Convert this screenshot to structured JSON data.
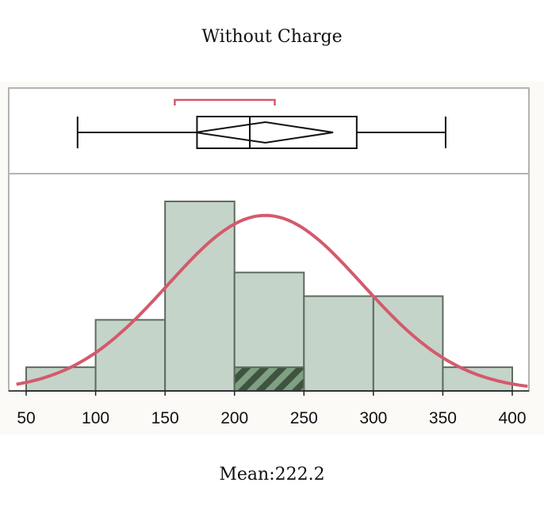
{
  "title": "Without Charge",
  "mean_label": "Mean:222.2",
  "colors": {
    "bar_fill": "#c5d4c8",
    "bar_stroke": "#5f6b60",
    "normal_curve": "#d35a6d",
    "box": "#111111",
    "shortest_half": "#d35a6d",
    "hatch_dark": "#3e5441",
    "hatch_light": "#7fa083"
  },
  "chart_data": {
    "type": "histogram",
    "xlim": [
      43,
      412
    ],
    "x_ticks": [
      50,
      100,
      150,
      200,
      250,
      300,
      350,
      400
    ],
    "bins": [
      {
        "from": 50,
        "to": 100,
        "count": 1
      },
      {
        "from": 100,
        "to": 150,
        "count": 3
      },
      {
        "from": 150,
        "to": 200,
        "count": 8
      },
      {
        "from": 200,
        "to": 250,
        "count": 5
      },
      {
        "from": 250,
        "to": 300,
        "count": 4
      },
      {
        "from": 300,
        "to": 350,
        "count": 4
      },
      {
        "from": 350,
        "to": 400,
        "count": 1
      }
    ],
    "highlight": {
      "from": 200,
      "to": 250,
      "count": 1
    },
    "normal_fit": {
      "mean": 222.2,
      "sd": 70,
      "n": 26
    },
    "boxplot": {
      "min": 87,
      "q1": 173,
      "median": 211,
      "q3": 288,
      "max": 352,
      "mean_diamond": {
        "center": 222.2,
        "from": 172,
        "to": 271
      },
      "shortest_half": {
        "from": 157,
        "to": 229
      }
    }
  }
}
